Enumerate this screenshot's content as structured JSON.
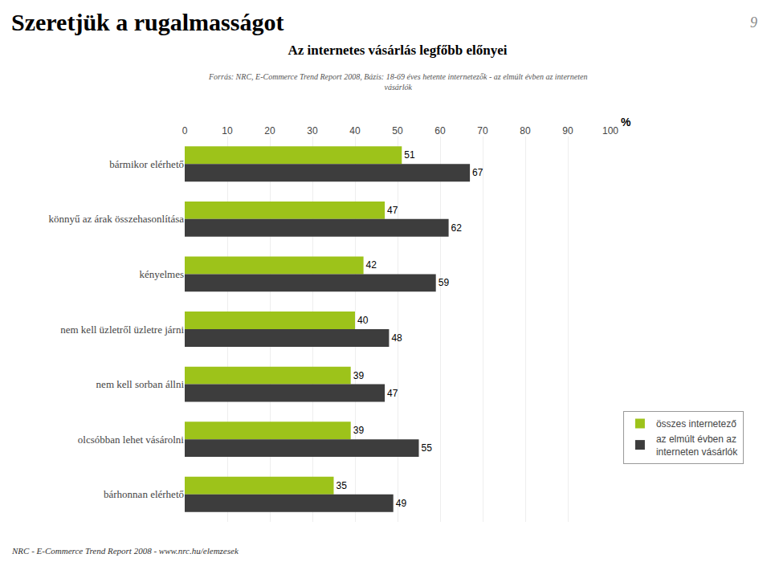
{
  "chart_data": {
    "type": "bar",
    "orientation": "horizontal",
    "title": "Az internetes vásárlás legfőbb előnyei",
    "subtitle": "Forrás: NRC, E-Commerce Trend Report 2008, Bázis: 18-69 éves hetente internetezők - az elmúlt évben az interneten\nvásárlók",
    "xlabel": "%",
    "annotations": [
      "Szeretjük a rugalmasságot",
      "9",
      "NRC - E-Commerce Trend Report 2008 - www.nrc.hu/elemzesek"
    ],
    "categories": [
      "bármikor elérhető",
      "könnyű az árak összehasonlítása",
      "kényelmes",
      "nem kell üzletről üzletre járni",
      "nem kell sorban állni",
      "olcsóbban lehet vásárolni",
      "bárhonnan elérhető"
    ],
    "series": [
      {
        "name": "összes internetező",
        "color": "#9DC31A",
        "values": [
          51,
          47,
          42,
          40,
          39,
          39,
          35
        ]
      },
      {
        "name": "az elmúlt évben az\ninterneten vásárlók",
        "color": "#3D3D3D",
        "values": [
          67,
          62,
          59,
          48,
          47,
          55,
          49
        ]
      }
    ],
    "xlim": [
      0,
      100
    ],
    "xticks": [
      0,
      10,
      20,
      30,
      40,
      50,
      60,
      70,
      80,
      90,
      100
    ],
    "grid": true,
    "legend": "lower right",
    "data_labels": true
  }
}
